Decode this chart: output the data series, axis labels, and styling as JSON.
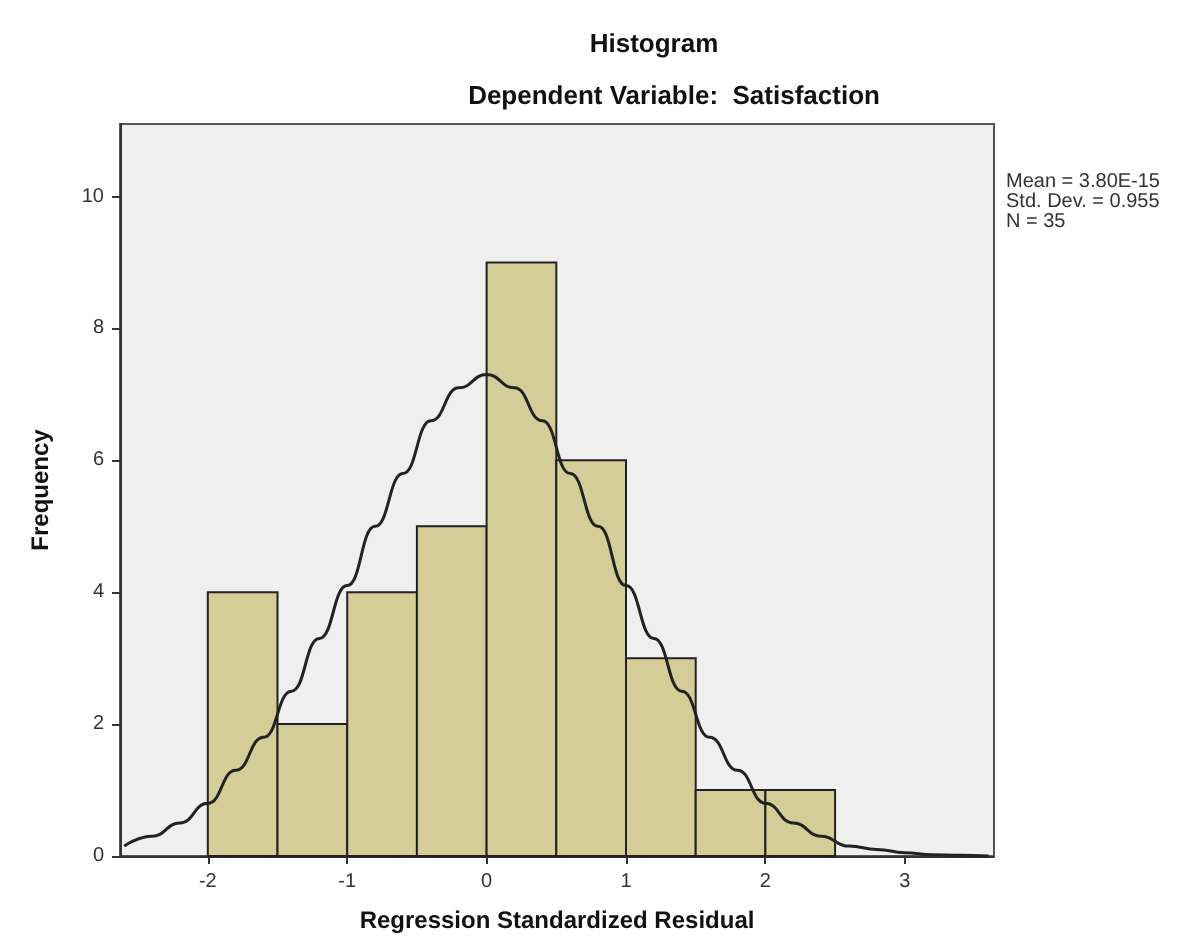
{
  "chart_data": {
    "type": "histogram",
    "title": "Histogram",
    "subtitle": "Dependent Variable:  Satisfaction",
    "xlabel": "Regression Standardized Residual",
    "ylabel": "Frequency",
    "bins": [
      -2,
      -1.5,
      -1,
      -0.5,
      0,
      0.5,
      1,
      1.5,
      2,
      2.5
    ],
    "values": [
      4,
      2,
      4,
      5,
      9,
      6,
      3,
      1,
      1
    ],
    "color": "#d5cd98",
    "series": [
      {
        "type": "line",
        "color": "#222222",
        "x": [
          -2.6,
          -2.4,
          -2.2,
          -2,
          -1.8,
          -1.6,
          -1.4,
          -1.2,
          -1,
          -0.8,
          -0.6,
          -0.4,
          -0.2,
          0,
          0.2,
          0.4,
          0.6,
          0.8,
          1,
          1.2,
          1.4,
          1.6,
          1.8,
          2,
          2.2,
          2.4,
          2.6,
          2.8,
          3,
          3.2,
          3.4,
          3.6
        ],
        "values": [
          0.15,
          0.3,
          0.5,
          0.8,
          1.3,
          1.8,
          2.5,
          3.3,
          4.1,
          5.0,
          5.8,
          6.6,
          7.1,
          7.3,
          7.1,
          6.6,
          5.8,
          5.0,
          4.1,
          3.3,
          2.5,
          1.8,
          1.3,
          0.8,
          0.5,
          0.3,
          0.15,
          0.1,
          0.05,
          0.02,
          0.01,
          0
        ]
      }
    ],
    "marker": "none",
    "xlim": [
      -2.63,
      3.64
    ],
    "xticks": [
      -2,
      -1,
      0,
      1,
      2,
      3
    ],
    "ylim": [
      0,
      11.1
    ],
    "yticks": [
      0,
      2,
      4,
      6,
      8,
      10
    ],
    "grid": false,
    "annotations": [
      "Mean = 3.80E-15",
      "Std. Dev. = 0.955",
      "N = 35"
    ]
  }
}
